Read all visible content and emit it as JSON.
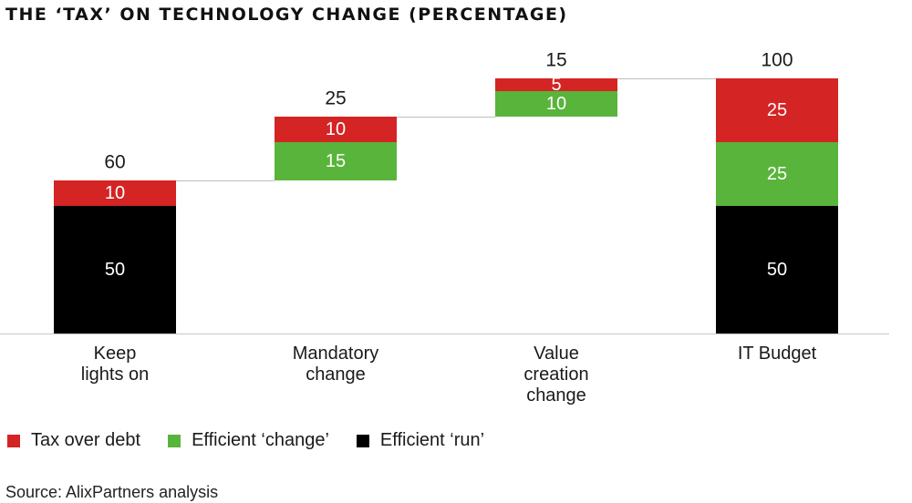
{
  "title": "THE ‘TAX’ ON TECHNOLOGY CHANGE (PERCENTAGE)",
  "source": "Source: AlixPartners analysis",
  "colors": {
    "tax": "#d42424",
    "change": "#59b43b",
    "run": "#000000"
  },
  "legend": [
    {
      "key": "tax",
      "label": "Tax over debt"
    },
    {
      "key": "change",
      "label": "Efficient ‘change’"
    },
    {
      "key": "run",
      "label": "Efficient ‘run’"
    }
  ],
  "chart_data": {
    "type": "bar",
    "subtype": "waterfall-stacked",
    "title": "THE ‘TAX’ ON TECHNOLOGY CHANGE (PERCENTAGE)",
    "ylim": [
      0,
      100
    ],
    "categories": [
      {
        "label": [
          "Keep",
          "lights on"
        ],
        "base": 0,
        "total": 60,
        "segments": [
          {
            "series": "run",
            "value": 50
          },
          {
            "series": "tax",
            "value": 10
          }
        ]
      },
      {
        "label": [
          "Mandatory",
          "change"
        ],
        "base": 60,
        "total": 25,
        "segments": [
          {
            "series": "change",
            "value": 15
          },
          {
            "series": "tax",
            "value": 10
          }
        ]
      },
      {
        "label": [
          "Value",
          "creation",
          "change"
        ],
        "base": 85,
        "total": 15,
        "segments": [
          {
            "series": "change",
            "value": 10
          },
          {
            "series": "tax",
            "value": 5
          }
        ]
      },
      {
        "label": [
          "IT Budget"
        ],
        "base": 0,
        "total": 100,
        "segments": [
          {
            "series": "run",
            "value": 50
          },
          {
            "series": "change",
            "value": 25
          },
          {
            "series": "tax",
            "value": 25
          }
        ]
      }
    ],
    "series": [
      {
        "key": "tax",
        "name": "Tax over debt"
      },
      {
        "key": "change",
        "name": "Efficient ‘change’"
      },
      {
        "key": "run",
        "name": "Efficient ‘run’"
      }
    ]
  }
}
